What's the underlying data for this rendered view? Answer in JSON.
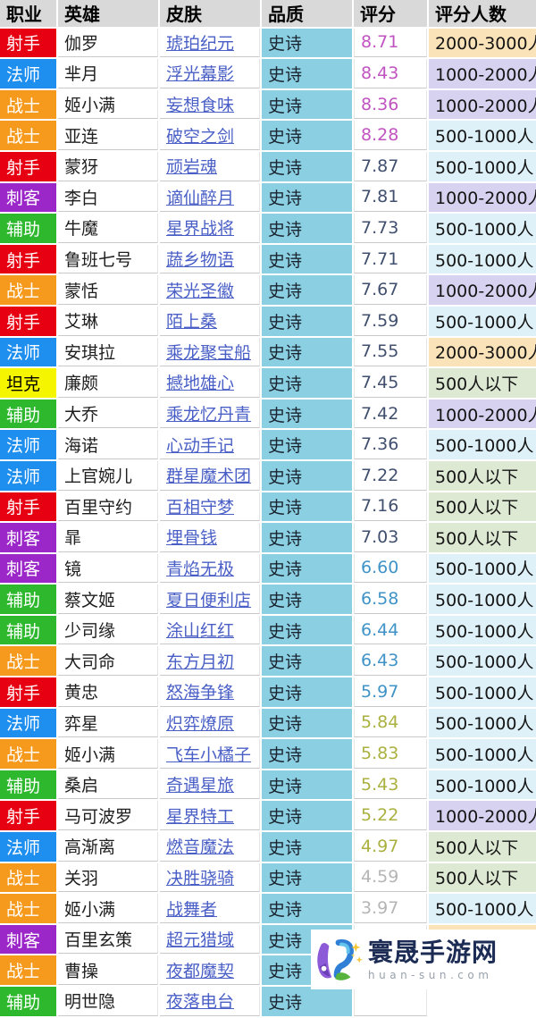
{
  "table": {
    "headers": [
      "职业",
      "英雄",
      "皮肤",
      "品质",
      "评分",
      "评分人数"
    ],
    "rows": [
      {
        "role": "射手",
        "hero": "伽罗",
        "skin": "琥珀纪元",
        "quality": "史诗",
        "rating": "8.71",
        "rating_tier": "excellent",
        "raters": "2000-3000人"
      },
      {
        "role": "法师",
        "hero": "芈月",
        "skin": "浮光幕影",
        "quality": "史诗",
        "rating": "8.43",
        "rating_tier": "excellent",
        "raters": "1000-2000人"
      },
      {
        "role": "战士",
        "hero": "姬小满",
        "skin": "妄想食味",
        "quality": "史诗",
        "rating": "8.36",
        "rating_tier": "excellent",
        "raters": "1000-2000人"
      },
      {
        "role": "战士",
        "hero": "亚连",
        "skin": "破空之剑",
        "quality": "史诗",
        "rating": "8.28",
        "rating_tier": "excellent",
        "raters": "500-1000人"
      },
      {
        "role": "射手",
        "hero": "蒙犽",
        "skin": "顽岩魂",
        "quality": "史诗",
        "rating": "7.87",
        "rating_tier": "good",
        "raters": "500-1000人"
      },
      {
        "role": "刺客",
        "hero": "李白",
        "skin": "谪仙醉月",
        "quality": "史诗",
        "rating": "7.81",
        "rating_tier": "good",
        "raters": "1000-2000人"
      },
      {
        "role": "辅助",
        "hero": "牛魔",
        "skin": "星界战将",
        "quality": "史诗",
        "rating": "7.73",
        "rating_tier": "good",
        "raters": "500-1000人"
      },
      {
        "role": "射手",
        "hero": "鲁班七号",
        "skin": "蔬乡物语",
        "quality": "史诗",
        "rating": "7.71",
        "rating_tier": "good",
        "raters": "500-1000人"
      },
      {
        "role": "战士",
        "hero": "蒙恬",
        "skin": "荣光圣徽",
        "quality": "史诗",
        "rating": "7.67",
        "rating_tier": "good",
        "raters": "1000-2000人"
      },
      {
        "role": "射手",
        "hero": "艾琳",
        "skin": "陌上桑",
        "quality": "史诗",
        "rating": "7.59",
        "rating_tier": "good",
        "raters": "500-1000人"
      },
      {
        "role": "法师",
        "hero": "安琪拉",
        "skin": "乘龙聚宝船",
        "quality": "史诗",
        "rating": "7.55",
        "rating_tier": "good",
        "raters": "2000-3000人"
      },
      {
        "role": "坦克",
        "hero": "廉颇",
        "skin": "撼地雄心",
        "quality": "史诗",
        "rating": "7.45",
        "rating_tier": "good",
        "raters": "500人以下"
      },
      {
        "role": "辅助",
        "hero": "大乔",
        "skin": "乘龙忆丹青",
        "quality": "史诗",
        "rating": "7.42",
        "rating_tier": "good",
        "raters": "1000-2000人"
      },
      {
        "role": "法师",
        "hero": "海诺",
        "skin": "心动手记",
        "quality": "史诗",
        "rating": "7.36",
        "rating_tier": "good",
        "raters": "500-1000人"
      },
      {
        "role": "法师",
        "hero": "上官婉儿",
        "skin": "群星魔术团",
        "quality": "史诗",
        "rating": "7.22",
        "rating_tier": "good",
        "raters": "500人以下"
      },
      {
        "role": "射手",
        "hero": "百里守约",
        "skin": "百相守梦",
        "quality": "史诗",
        "rating": "7.16",
        "rating_tier": "good",
        "raters": "500人以下"
      },
      {
        "role": "刺客",
        "hero": "暃",
        "skin": "埋骨钱",
        "quality": "史诗",
        "rating": "7.03",
        "rating_tier": "good",
        "raters": "500人以下"
      },
      {
        "role": "刺客",
        "hero": "镜",
        "skin": "青焰无极",
        "quality": "史诗",
        "rating": "6.60",
        "rating_tier": "average",
        "raters": "500-1000人"
      },
      {
        "role": "辅助",
        "hero": "蔡文姬",
        "skin": "夏日便利店",
        "quality": "史诗",
        "rating": "6.58",
        "rating_tier": "average",
        "raters": "500-1000人"
      },
      {
        "role": "辅助",
        "hero": "少司缘",
        "skin": "涂山红红",
        "quality": "史诗",
        "rating": "6.44",
        "rating_tier": "average",
        "raters": "500-1000人"
      },
      {
        "role": "战士",
        "hero": "大司命",
        "skin": "东方月初",
        "quality": "史诗",
        "rating": "6.43",
        "rating_tier": "average",
        "raters": "500-1000人"
      },
      {
        "role": "射手",
        "hero": "黄忠",
        "skin": "怒海争锋",
        "quality": "史诗",
        "rating": "5.97",
        "rating_tier": "average",
        "raters": "500-1000人"
      },
      {
        "role": "法师",
        "hero": "弈星",
        "skin": "炽弈燎原",
        "quality": "史诗",
        "rating": "5.84",
        "rating_tier": "low",
        "raters": "500-1000人"
      },
      {
        "role": "战士",
        "hero": "姬小满",
        "skin": "飞车小橘子",
        "quality": "史诗",
        "rating": "5.83",
        "rating_tier": "low",
        "raters": "500-1000人"
      },
      {
        "role": "辅助",
        "hero": "桑启",
        "skin": "奇遇星旅",
        "quality": "史诗",
        "rating": "5.43",
        "rating_tier": "low",
        "raters": "500-1000人"
      },
      {
        "role": "射手",
        "hero": "马可波罗",
        "skin": "星界特工",
        "quality": "史诗",
        "rating": "5.22",
        "rating_tier": "low",
        "raters": "1000-2000人"
      },
      {
        "role": "法师",
        "hero": "高渐离",
        "skin": "燃音魔法",
        "quality": "史诗",
        "rating": "4.97",
        "rating_tier": "low",
        "raters": "500人以下"
      },
      {
        "role": "战士",
        "hero": "关羽",
        "skin": "决胜骁骑",
        "quality": "史诗",
        "rating": "4.59",
        "rating_tier": "poor",
        "raters": "500人以下"
      },
      {
        "role": "战士",
        "hero": "姬小满",
        "skin": "战舞者",
        "quality": "史诗",
        "rating": "3.97",
        "rating_tier": "poor",
        "raters": "500-1000人"
      },
      {
        "role": "刺客",
        "hero": "百里玄策",
        "skin": "超元猎域",
        "quality": "史诗",
        "rating": "3.80",
        "rating_tier": "poor",
        "raters": "2000-3000人"
      },
      {
        "role": "战士",
        "hero": "曹操",
        "skin": "夜都魔契",
        "quality": "史诗",
        "rating": "",
        "rating_tier": "",
        "raters": ""
      },
      {
        "role": "辅助",
        "hero": "明世隐",
        "skin": "夜落电台",
        "quality": "史诗",
        "rating": "",
        "rating_tier": "",
        "raters": ""
      }
    ]
  },
  "colors": {
    "header_bg": "#d9d9d9",
    "quality_bg": "#8bd0e2",
    "role_colors": {
      "射手": {
        "bg": "#e60012",
        "fg": "#ffffff"
      },
      "法师": {
        "bg": "#1e8fee",
        "fg": "#ffffff"
      },
      "战士": {
        "bg": "#f59a1d",
        "fg": "#ffffff"
      },
      "刺客": {
        "bg": "#9c27c9",
        "fg": "#ffffff"
      },
      "辅助": {
        "bg": "#2eb82e",
        "fg": "#ffffff"
      },
      "坦克": {
        "bg": "#f5f500",
        "fg": "#000000"
      }
    },
    "rating_colors": {
      "excellent": "#c153c1",
      "good": "#414f6e",
      "average": "#3f93c6",
      "low": "#aab13f",
      "poor": "#b5b5b5"
    },
    "raters_bg": {
      "2000-3000人": "#fbe3b9",
      "1000-2000人": "#d8d2f1",
      "500-1000人": "#def1f8",
      "500人以下": "#dde9d3"
    },
    "link_color": "#4a5fc6"
  },
  "watermark": {
    "site_name": "寰晟手游网",
    "site_url": "huan-sun.com"
  }
}
